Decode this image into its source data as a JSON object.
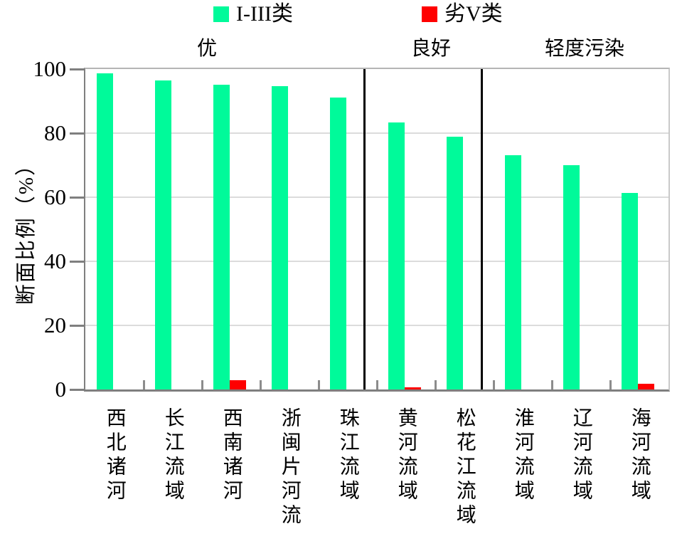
{
  "chart_data": {
    "type": "bar",
    "title": "",
    "xlabel": "",
    "ylabel": "断面比例（%）",
    "ylim": [
      0,
      100
    ],
    "yticks": [
      0,
      20,
      40,
      60,
      80,
      100
    ],
    "grid": true,
    "legend_position": "top-center",
    "categories": [
      "西北诸河",
      "长江流域",
      "西南诸河",
      "浙闽片河流",
      "珠江流域",
      "黄河流域",
      "松花江流域",
      "淮河流域",
      "辽河流域",
      "海河流域"
    ],
    "series": [
      {
        "name": "I-III类",
        "color": "#00FA9A",
        "values": [
          98.6,
          96.4,
          95.2,
          94.6,
          91.2,
          83.4,
          78.8,
          73.2,
          70.0,
          61.3
        ]
      },
      {
        "name": "劣V类",
        "color": "#FF0000",
        "values": [
          0,
          0,
          2.9,
          0,
          0,
          0.6,
          0,
          0,
          0,
          1.7
        ]
      }
    ],
    "sections": [
      {
        "label": "优",
        "from_category": "西北诸河",
        "to_category": "珠江流域"
      },
      {
        "label": "良好",
        "from_category": "黄河流域",
        "to_category": "松花江流域"
      },
      {
        "label": "轻度污染",
        "from_category": "淮河流域",
        "to_category": "海河流域"
      }
    ],
    "divider_x_pct": [
      47.9,
      68.0
    ],
    "axis_color": "#7f7f7f",
    "gridline_color": "#dcdcdc",
    "divider_color": "#000000"
  }
}
